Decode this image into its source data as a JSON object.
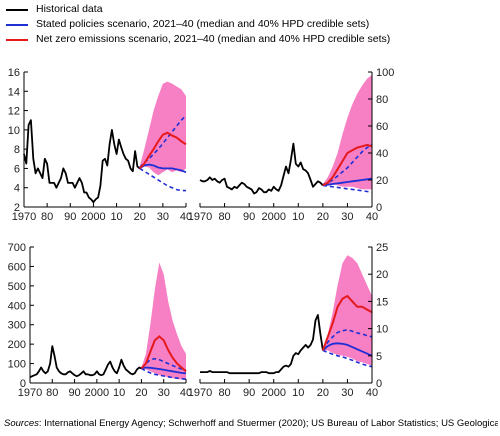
{
  "legend": {
    "items": [
      {
        "label": "Historical data",
        "color": "#000000"
      },
      {
        "label": "Stated policies scenario, 2021–40 (median and 40% HPD credible sets)",
        "color": "#1f2fd6"
      },
      {
        "label": "Net zero emissions scenario, 2021–40 (median and 40% HPD credible sets)",
        "color": "#e41a1c"
      }
    ]
  },
  "colors": {
    "band": "#f77fc4",
    "history": "#000000",
    "stated": "#1f2fd6",
    "netzero": "#e41a1c"
  },
  "sources": {
    "lead": "Sources",
    "text": ": International Energy Agency; Schwerhoff and Stuermer (2020); US Bureau of Labor Statistics; US Geological"
  },
  "chart_data": [
    {
      "type": "line",
      "ytick_side": "left",
      "xlim": [
        1970,
        2040
      ],
      "ylim": [
        2,
        16
      ],
      "yticks": [
        "2",
        "4",
        "6",
        "8",
        "10",
        "12",
        "14",
        "16"
      ],
      "xticks": [
        "1970",
        "80",
        "90",
        "2000",
        "10",
        "20",
        "30",
        "40"
      ],
      "history": {
        "x": [
          1970,
          1971,
          1972,
          1973,
          1974,
          1975,
          1976,
          1977,
          1978,
          1979,
          1980,
          1981,
          1982,
          1983,
          1984,
          1985,
          1986,
          1987,
          1988,
          1989,
          1990,
          1991,
          1992,
          1993,
          1994,
          1995,
          1996,
          1997,
          1998,
          1999,
          2000,
          2001,
          2002,
          2003,
          2004,
          2005,
          2006,
          2007,
          2008,
          2009,
          2010,
          2011,
          2012,
          2013,
          2014,
          2015,
          2016,
          2017,
          2018,
          2019,
          2020
        ],
        "y": [
          7.5,
          6.5,
          10.5,
          11,
          7,
          5.5,
          6,
          5.5,
          5,
          7,
          6.5,
          4.5,
          4.5,
          4.5,
          4,
          4.5,
          5,
          6,
          5.5,
          4.5,
          4.5,
          4.5,
          4,
          4.5,
          5,
          4.5,
          3.5,
          3.5,
          3,
          2.8,
          2.5,
          2.8,
          3,
          4.2,
          6.8,
          7,
          6.3,
          8.5,
          10,
          8.5,
          7.5,
          9,
          8.2,
          7.5,
          7,
          6.8,
          6,
          5.7,
          7.8,
          6.2,
          6
        ]
      },
      "band": {
        "x": [
          2020,
          2022,
          2024,
          2026,
          2028,
          2030,
          2032,
          2034,
          2036,
          2038,
          2040
        ],
        "lower": [
          6,
          6.2,
          6.1,
          5.6,
          5.3,
          5.6,
          5.9,
          5.6,
          5.8,
          5.6,
          6
        ],
        "upper": [
          6.2,
          8,
          10,
          12,
          13.5,
          14.8,
          15,
          14.8,
          14.5,
          14.2,
          13.5
        ]
      },
      "stated_median": {
        "x": [
          2020,
          2022,
          2024,
          2026,
          2028,
          2030,
          2032,
          2034,
          2036,
          2038,
          2040
        ],
        "y": [
          6,
          6.3,
          6.4,
          6.3,
          6.1,
          6,
          6,
          6,
          5.9,
          5.8,
          5.6
        ]
      },
      "stated_low": {
        "x": [
          2020,
          2022,
          2024,
          2026,
          2028,
          2030,
          2032,
          2034,
          2036,
          2038,
          2040
        ],
        "y": [
          6,
          5.7,
          5.4,
          5.1,
          4.8,
          4.5,
          4.2,
          4,
          3.8,
          3.7,
          3.7
        ]
      },
      "stated_high": {
        "x": [
          2020,
          2022,
          2024,
          2026,
          2028,
          2030,
          2032,
          2034,
          2036,
          2038,
          2040
        ],
        "y": [
          6.1,
          6.6,
          7,
          7.5,
          8,
          8.6,
          9.2,
          9.8,
          10.4,
          11,
          11.5
        ]
      },
      "netzero_median": {
        "x": [
          2020,
          2022,
          2024,
          2026,
          2028,
          2030,
          2032,
          2034,
          2036,
          2038,
          2040
        ],
        "y": [
          6,
          6.5,
          7.3,
          8,
          8.8,
          9.5,
          9.7,
          9.4,
          9.2,
          8.8,
          8.5
        ]
      }
    },
    {
      "type": "line",
      "ytick_side": "right",
      "xlim": [
        1970,
        2040
      ],
      "ylim": [
        0,
        100
      ],
      "yticks": [
        "0",
        "20",
        "40",
        "60",
        "80",
        "100"
      ],
      "xticks": [
        "1970",
        "80",
        "90",
        "2000",
        "10",
        "20",
        "30",
        "40"
      ],
      "history": {
        "x": [
          1970,
          1971,
          1972,
          1973,
          1974,
          1975,
          1976,
          1977,
          1978,
          1979,
          1980,
          1981,
          1982,
          1983,
          1984,
          1985,
          1986,
          1987,
          1988,
          1989,
          1990,
          1991,
          1992,
          1993,
          1994,
          1995,
          1996,
          1997,
          1998,
          1999,
          2000,
          2001,
          2002,
          2003,
          2004,
          2005,
          2006,
          2007,
          2008,
          2009,
          2010,
          2011,
          2012,
          2013,
          2014,
          2015,
          2016,
          2017,
          2018,
          2019,
          2020
        ],
        "y": [
          20,
          19,
          19,
          20,
          22,
          20,
          21,
          19,
          18,
          20,
          21,
          15,
          14,
          13,
          15,
          14,
          16,
          18,
          17,
          15,
          14,
          13,
          10,
          11,
          14,
          13,
          11,
          11,
          13,
          12,
          15,
          13,
          12,
          16,
          23,
          30,
          25,
          35,
          47,
          32,
          30,
          33,
          28,
          27,
          25,
          20,
          15,
          17,
          19,
          18,
          16
        ]
      },
      "band": {
        "x": [
          2020,
          2022,
          2024,
          2026,
          2028,
          2030,
          2032,
          2034,
          2036,
          2038,
          2040
        ],
        "lower": [
          16,
          17,
          17,
          16,
          15,
          15,
          15,
          14,
          13,
          13,
          13
        ],
        "upper": [
          17,
          22,
          30,
          40,
          54,
          66,
          76,
          84,
          90,
          95,
          98
        ]
      },
      "stated_median": {
        "x": [
          2020,
          2022,
          2024,
          2026,
          2028,
          2030,
          2032,
          2034,
          2036,
          2038,
          2040
        ],
        "y": [
          16,
          16.5,
          17,
          17.5,
          18,
          18.5,
          19,
          19.5,
          20,
          20.5,
          21
        ]
      },
      "stated_low": {
        "x": [
          2020,
          2022,
          2024,
          2026,
          2028,
          2030,
          2032,
          2034,
          2036,
          2038,
          2040
        ],
        "y": [
          16,
          15.5,
          15,
          14.5,
          14,
          13.5,
          13,
          12.5,
          12,
          11.5,
          11
        ]
      },
      "stated_high": {
        "x": [
          2020,
          2022,
          2024,
          2026,
          2028,
          2030,
          2032,
          2034,
          2036,
          2038,
          2040
        ],
        "y": [
          16.5,
          18,
          20,
          23,
          26,
          29,
          33,
          37,
          41,
          44,
          46
        ]
      },
      "netzero_median": {
        "x": [
          2020,
          2022,
          2024,
          2026,
          2028,
          2030,
          2032,
          2034,
          2036,
          2038,
          2040
        ],
        "y": [
          16,
          18,
          22,
          28,
          34,
          40,
          42,
          44,
          45,
          46,
          45
        ]
      }
    },
    {
      "type": "line",
      "ytick_side": "left",
      "xlim": [
        1970,
        2040
      ],
      "ylim": [
        0,
        700
      ],
      "yticks": [
        "0",
        "100",
        "200",
        "300",
        "400",
        "500",
        "600",
        "700"
      ],
      "xticks": [
        "1970",
        "80",
        "90",
        "2000",
        "10",
        "20",
        "30",
        "40"
      ],
      "history": {
        "x": [
          1970,
          1971,
          1972,
          1973,
          1974,
          1975,
          1976,
          1977,
          1978,
          1979,
          1980,
          1981,
          1982,
          1983,
          1984,
          1985,
          1986,
          1987,
          1988,
          1989,
          1990,
          1991,
          1992,
          1993,
          1994,
          1995,
          1996,
          1997,
          1998,
          1999,
          2000,
          2001,
          2002,
          2003,
          2004,
          2005,
          2006,
          2007,
          2008,
          2009,
          2010,
          2011,
          2012,
          2013,
          2014,
          2015,
          2016,
          2017,
          2018,
          2019,
          2020
        ],
        "y": [
          30,
          35,
          40,
          45,
          60,
          80,
          60,
          50,
          60,
          100,
          190,
          140,
          80,
          60,
          50,
          45,
          45,
          55,
          60,
          50,
          40,
          35,
          40,
          50,
          60,
          45,
          45,
          40,
          40,
          45,
          60,
          45,
          40,
          45,
          70,
          95,
          110,
          80,
          60,
          50,
          80,
          120,
          90,
          70,
          60,
          50,
          45,
          50,
          70,
          80,
          75
        ]
      },
      "band": {
        "x": [
          2020,
          2022,
          2024,
          2026,
          2028,
          2030,
          2032,
          2034,
          2036,
          2038,
          2040
        ],
        "lower": [
          75,
          70,
          60,
          50,
          40,
          35,
          30,
          25,
          20,
          18,
          15
        ],
        "upper": [
          80,
          150,
          300,
          480,
          620,
          560,
          420,
          320,
          250,
          190,
          150
        ]
      },
      "stated_median": {
        "x": [
          2020,
          2022,
          2024,
          2026,
          2028,
          2030,
          2032,
          2034,
          2036,
          2038,
          2040
        ],
        "y": [
          75,
          80,
          78,
          75,
          72,
          68,
          64,
          60,
          56,
          52,
          50
        ]
      },
      "stated_low": {
        "x": [
          2020,
          2022,
          2024,
          2026,
          2028,
          2030,
          2032,
          2034,
          2036,
          2038,
          2040
        ],
        "y": [
          75,
          62,
          52,
          45,
          40,
          36,
          32,
          28,
          25,
          22,
          20
        ]
      },
      "stated_high": {
        "x": [
          2020,
          2022,
          2024,
          2026,
          2028,
          2030,
          2032,
          2034,
          2036,
          2038,
          2040
        ],
        "y": [
          78,
          100,
          120,
          125,
          120,
          110,
          100,
          90,
          80,
          72,
          65
        ]
      },
      "netzero_median": {
        "x": [
          2020,
          2022,
          2024,
          2026,
          2028,
          2030,
          2032,
          2034,
          2036,
          2038,
          2040
        ],
        "y": [
          75,
          100,
          160,
          220,
          240,
          220,
          170,
          130,
          100,
          80,
          60
        ]
      }
    },
    {
      "type": "line",
      "ytick_side": "right",
      "xlim": [
        1970,
        2040
      ],
      "ylim": [
        0,
        25
      ],
      "yticks": [
        "0",
        "5",
        "10",
        "15",
        "20",
        "25"
      ],
      "xticks": [
        "1970",
        "80",
        "90",
        "2000",
        "10",
        "20",
        "30",
        "40"
      ],
      "history": {
        "x": [
          1970,
          1971,
          1972,
          1973,
          1974,
          1975,
          1976,
          1977,
          1978,
          1979,
          1980,
          1981,
          1982,
          1983,
          1984,
          1985,
          1986,
          1987,
          1988,
          1989,
          1990,
          1991,
          1992,
          1993,
          1994,
          1995,
          1996,
          1997,
          1998,
          1999,
          2000,
          2001,
          2002,
          2003,
          2004,
          2005,
          2006,
          2007,
          2008,
          2009,
          2010,
          2011,
          2012,
          2013,
          2014,
          2015,
          2016,
          2017,
          2018,
          2019,
          2020
        ],
        "y": [
          2,
          2,
          2,
          2,
          2.2,
          2,
          2,
          2,
          2,
          2,
          2,
          2,
          1.8,
          1.8,
          1.8,
          1.8,
          1.8,
          1.8,
          1.8,
          1.8,
          1.8,
          1.8,
          1.8,
          1.8,
          1.8,
          2,
          2,
          2,
          1.8,
          1.8,
          1.8,
          2,
          2,
          2.5,
          3,
          3.2,
          3,
          3.5,
          5,
          5.5,
          5.3,
          6,
          6.5,
          7,
          6.5,
          7,
          8,
          11.5,
          12.5,
          9,
          6
        ]
      },
      "band": {
        "x": [
          2020,
          2022,
          2024,
          2026,
          2028,
          2030,
          2032,
          2034,
          2036,
          2038,
          2040
        ],
        "lower": [
          6,
          6,
          5.5,
          5.2,
          5,
          4.8,
          4.5,
          4,
          3.8,
          3.5,
          3.2
        ],
        "upper": [
          6.5,
          9,
          13,
          18,
          22,
          23.5,
          23,
          22,
          20,
          18,
          16
        ]
      },
      "stated_median": {
        "x": [
          2020,
          2022,
          2024,
          2026,
          2028,
          2030,
          2032,
          2034,
          2036,
          2038,
          2040
        ],
        "y": [
          6,
          6.8,
          7.2,
          7.3,
          7.2,
          7,
          6.6,
          6.2,
          5.8,
          5.4,
          5
        ]
      },
      "stated_low": {
        "x": [
          2020,
          2022,
          2024,
          2026,
          2028,
          2030,
          2032,
          2034,
          2036,
          2038,
          2040
        ],
        "y": [
          6,
          5.6,
          5.3,
          5,
          4.8,
          4.5,
          4.2,
          3.8,
          3.5,
          3.2,
          3
        ]
      },
      "stated_high": {
        "x": [
          2020,
          2022,
          2024,
          2026,
          2028,
          2030,
          2032,
          2034,
          2036,
          2038,
          2040
        ],
        "y": [
          6.2,
          7.5,
          8.5,
          9.3,
          9.6,
          9.8,
          9.5,
          9.2,
          9,
          8.7,
          8.5
        ]
      },
      "netzero_median": {
        "x": [
          2020,
          2022,
          2024,
          2026,
          2028,
          2030,
          2032,
          2034,
          2036,
          2038,
          2040
        ],
        "y": [
          6,
          8.5,
          11,
          14,
          15.5,
          16,
          15,
          14,
          14,
          13.5,
          13
        ]
      }
    }
  ]
}
